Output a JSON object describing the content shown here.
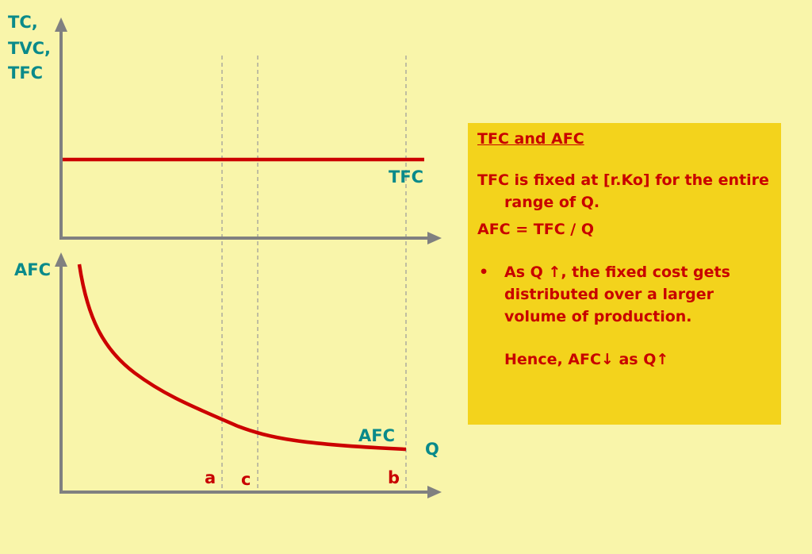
{
  "diagram": {
    "top_axis_label": [
      "TC,",
      "TVC,",
      "TFC"
    ],
    "tfc_curve_label": "TFC",
    "bottom_axis_label": "AFC",
    "afc_curve_label": "AFC",
    "x_axis_label": "Q",
    "points": [
      "a",
      "c",
      "b"
    ]
  },
  "note": {
    "title": "TFC and AFC",
    "paragraphs": [
      "TFC is fixed at [r.Ko] for the entire range of Q.",
      "AFC = TFC / Q"
    ],
    "bullet": "As Q ↑, the fixed cost gets distributed over a larger volume of production.",
    "conclusion": "Hence, AFC↓ as Q↑"
  }
}
